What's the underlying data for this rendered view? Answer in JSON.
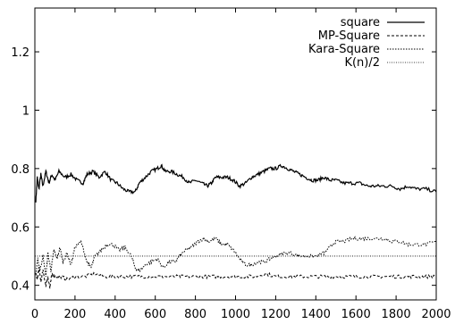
{
  "chart_data": {
    "type": "line",
    "title": "",
    "xlabel": "",
    "ylabel": "",
    "xlim": [
      0,
      2000
    ],
    "ylim": [
      0.35,
      1.35
    ],
    "grid": false,
    "legend_position": "top-right",
    "x_ticks": [
      0,
      200,
      400,
      600,
      800,
      1000,
      1200,
      1400,
      1600,
      1800,
      2000
    ],
    "x_tick_labels": [
      "0",
      "200",
      "400",
      "600",
      "800",
      "1000",
      "1200",
      "1400",
      "1600",
      "1800",
      "2000"
    ],
    "y_ticks": [
      0.4,
      0.6,
      0.8,
      1.0,
      1.2
    ],
    "y_tick_labels": [
      "0.4",
      "0.6",
      "0.8",
      "1",
      "1.2"
    ],
    "series": [
      {
        "name": "square",
        "style": "solid",
        "color": "#000000",
        "points": [
          [
            5,
            0.69
          ],
          [
            12,
            0.77
          ],
          [
            20,
            0.73
          ],
          [
            30,
            0.78
          ],
          [
            40,
            0.74
          ],
          [
            55,
            0.79
          ],
          [
            70,
            0.75
          ],
          [
            85,
            0.78
          ],
          [
            100,
            0.76
          ],
          [
            120,
            0.79
          ],
          [
            150,
            0.77
          ],
          [
            180,
            0.78
          ],
          [
            210,
            0.76
          ],
          [
            240,
            0.75
          ],
          [
            260,
            0.78
          ],
          [
            290,
            0.79
          ],
          [
            320,
            0.77
          ],
          [
            350,
            0.79
          ],
          [
            380,
            0.76
          ],
          [
            410,
            0.75
          ],
          [
            440,
            0.73
          ],
          [
            470,
            0.72
          ],
          [
            500,
            0.72
          ],
          [
            520,
            0.75
          ],
          [
            550,
            0.77
          ],
          [
            580,
            0.79
          ],
          [
            610,
            0.8
          ],
          [
            630,
            0.81
          ],
          [
            650,
            0.79
          ],
          [
            680,
            0.79
          ],
          [
            710,
            0.78
          ],
          [
            740,
            0.77
          ],
          [
            770,
            0.75
          ],
          [
            800,
            0.76
          ],
          [
            830,
            0.75
          ],
          [
            860,
            0.74
          ],
          [
            880,
            0.75
          ],
          [
            900,
            0.77
          ],
          [
            930,
            0.77
          ],
          [
            960,
            0.77
          ],
          [
            990,
            0.76
          ],
          [
            1020,
            0.74
          ],
          [
            1050,
            0.75
          ],
          [
            1080,
            0.77
          ],
          [
            1110,
            0.78
          ],
          [
            1140,
            0.79
          ],
          [
            1170,
            0.8
          ],
          [
            1200,
            0.8
          ],
          [
            1230,
            0.81
          ],
          [
            1260,
            0.8
          ],
          [
            1290,
            0.79
          ],
          [
            1320,
            0.78
          ],
          [
            1350,
            0.77
          ],
          [
            1380,
            0.76
          ],
          [
            1410,
            0.76
          ],
          [
            1440,
            0.77
          ],
          [
            1470,
            0.76
          ],
          [
            1500,
            0.76
          ],
          [
            1540,
            0.75
          ],
          [
            1580,
            0.75
          ],
          [
            1620,
            0.75
          ],
          [
            1660,
            0.74
          ],
          [
            1700,
            0.74
          ],
          [
            1740,
            0.74
          ],
          [
            1780,
            0.74
          ],
          [
            1820,
            0.73
          ],
          [
            1860,
            0.74
          ],
          [
            1900,
            0.73
          ],
          [
            1950,
            0.73
          ],
          [
            2000,
            0.72
          ]
        ]
      },
      {
        "name": "MP-Square",
        "style": "dashed",
        "color": "#000000",
        "points": [
          [
            5,
            0.44
          ],
          [
            12,
            0.42
          ],
          [
            20,
            0.46
          ],
          [
            30,
            0.41
          ],
          [
            40,
            0.45
          ],
          [
            55,
            0.4
          ],
          [
            65,
            0.43
          ],
          [
            75,
            0.39
          ],
          [
            85,
            0.44
          ],
          [
            100,
            0.43
          ],
          [
            130,
            0.43
          ],
          [
            160,
            0.42
          ],
          [
            200,
            0.43
          ],
          [
            250,
            0.43
          ],
          [
            300,
            0.44
          ],
          [
            350,
            0.43
          ],
          [
            400,
            0.43
          ],
          [
            450,
            0.43
          ],
          [
            500,
            0.43
          ],
          [
            550,
            0.43
          ],
          [
            600,
            0.43
          ],
          [
            650,
            0.43
          ],
          [
            700,
            0.43
          ],
          [
            750,
            0.43
          ],
          [
            800,
            0.43
          ],
          [
            850,
            0.43
          ],
          [
            900,
            0.43
          ],
          [
            950,
            0.43
          ],
          [
            1000,
            0.43
          ],
          [
            1050,
            0.43
          ],
          [
            1100,
            0.43
          ],
          [
            1150,
            0.44
          ],
          [
            1200,
            0.43
          ],
          [
            1250,
            0.43
          ],
          [
            1300,
            0.43
          ],
          [
            1350,
            0.43
          ],
          [
            1400,
            0.43
          ],
          [
            1450,
            0.43
          ],
          [
            1500,
            0.43
          ],
          [
            1550,
            0.43
          ],
          [
            1600,
            0.43
          ],
          [
            1650,
            0.43
          ],
          [
            1700,
            0.43
          ],
          [
            1750,
            0.43
          ],
          [
            1800,
            0.43
          ],
          [
            1850,
            0.43
          ],
          [
            1900,
            0.43
          ],
          [
            1950,
            0.43
          ],
          [
            2000,
            0.43
          ]
        ]
      },
      {
        "name": "Kara-Square",
        "style": "dotted",
        "color": "#000000",
        "points": [
          [
            5,
            0.44
          ],
          [
            15,
            0.49
          ],
          [
            25,
            0.45
          ],
          [
            40,
            0.5
          ],
          [
            55,
            0.43
          ],
          [
            65,
            0.51
          ],
          [
            80,
            0.45
          ],
          [
            95,
            0.52
          ],
          [
            110,
            0.49
          ],
          [
            125,
            0.53
          ],
          [
            140,
            0.48
          ],
          [
            160,
            0.51
          ],
          [
            180,
            0.47
          ],
          [
            200,
            0.53
          ],
          [
            230,
            0.55
          ],
          [
            260,
            0.48
          ],
          [
            280,
            0.46
          ],
          [
            300,
            0.5
          ],
          [
            330,
            0.52
          ],
          [
            360,
            0.54
          ],
          [
            390,
            0.54
          ],
          [
            420,
            0.52
          ],
          [
            450,
            0.53
          ],
          [
            480,
            0.5
          ],
          [
            500,
            0.46
          ],
          [
            520,
            0.45
          ],
          [
            550,
            0.47
          ],
          [
            580,
            0.48
          ],
          [
            610,
            0.49
          ],
          [
            640,
            0.46
          ],
          [
            670,
            0.48
          ],
          [
            700,
            0.48
          ],
          [
            720,
            0.5
          ],
          [
            750,
            0.52
          ],
          [
            780,
            0.53
          ],
          [
            810,
            0.55
          ],
          [
            840,
            0.56
          ],
          [
            870,
            0.55
          ],
          [
            900,
            0.56
          ],
          [
            930,
            0.54
          ],
          [
            960,
            0.54
          ],
          [
            990,
            0.52
          ],
          [
            1020,
            0.49
          ],
          [
            1050,
            0.47
          ],
          [
            1080,
            0.47
          ],
          [
            1110,
            0.48
          ],
          [
            1140,
            0.48
          ],
          [
            1170,
            0.49
          ],
          [
            1200,
            0.5
          ],
          [
            1240,
            0.51
          ],
          [
            1280,
            0.51
          ],
          [
            1320,
            0.5
          ],
          [
            1360,
            0.5
          ],
          [
            1400,
            0.5
          ],
          [
            1440,
            0.51
          ],
          [
            1470,
            0.53
          ],
          [
            1500,
            0.55
          ],
          [
            1540,
            0.55
          ],
          [
            1580,
            0.56
          ],
          [
            1620,
            0.56
          ],
          [
            1660,
            0.56
          ],
          [
            1700,
            0.56
          ],
          [
            1740,
            0.56
          ],
          [
            1780,
            0.55
          ],
          [
            1820,
            0.55
          ],
          [
            1860,
            0.54
          ],
          [
            1900,
            0.54
          ],
          [
            1950,
            0.54
          ],
          [
            2000,
            0.55
          ]
        ]
      },
      {
        "name": "K(n)/2",
        "style": "dotted-fine",
        "color": "#000000",
        "points": [
          [
            0,
            0.5
          ],
          [
            2000,
            0.5
          ]
        ]
      }
    ]
  }
}
